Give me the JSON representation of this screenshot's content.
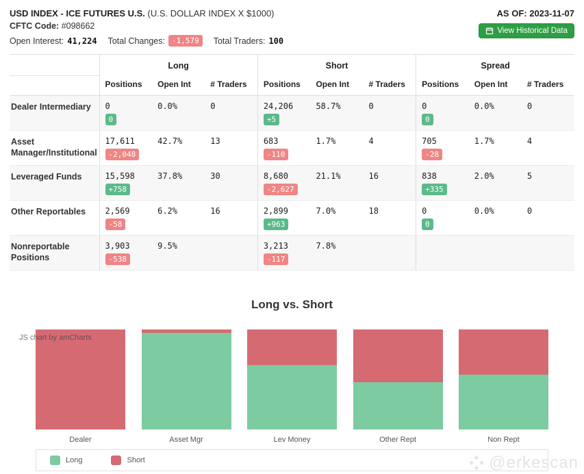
{
  "header": {
    "title": "USD INDEX - ICE FUTURES U.S.",
    "subtitle": "(U.S. DOLLAR INDEX X $1000)",
    "cftc_code_label": "CFTC Code:",
    "cftc_code": "#098662",
    "open_interest_label": "Open Interest:",
    "open_interest": "41,224",
    "total_changes_label": "Total Changes:",
    "total_changes": "-1,579",
    "total_traders_label": "Total Traders:",
    "total_traders": "100",
    "as_of": "AS OF: 2023-11-07",
    "historical_button_label": "View Historical Data"
  },
  "table": {
    "groups": [
      "Long",
      "Short",
      "Spread"
    ],
    "columns": [
      "Positions",
      "Open Int",
      "# Traders"
    ],
    "rows": [
      {
        "label": "Dealer Intermediary",
        "long": {
          "positions": "0",
          "change": "0",
          "open_int": "0.0%",
          "traders": "0"
        },
        "short": {
          "positions": "24,206",
          "change": "+5",
          "open_int": "58.7%",
          "traders": "0"
        },
        "spread": {
          "positions": "0",
          "change": "0",
          "open_int": "0.0%",
          "traders": "0"
        }
      },
      {
        "label": "Asset Manager/Institutional",
        "long": {
          "positions": "17,611",
          "change": "-2,048",
          "open_int": "42.7%",
          "traders": "13"
        },
        "short": {
          "positions": "683",
          "change": "-110",
          "open_int": "1.7%",
          "traders": "4"
        },
        "spread": {
          "positions": "705",
          "change": "-28",
          "open_int": "1.7%",
          "traders": "4"
        }
      },
      {
        "label": "Leveraged Funds",
        "long": {
          "positions": "15,598",
          "change": "+758",
          "open_int": "37.8%",
          "traders": "30"
        },
        "short": {
          "positions": "8,680",
          "change": "-2,627",
          "open_int": "21.1%",
          "traders": "16"
        },
        "spread": {
          "positions": "838",
          "change": "+335",
          "open_int": "2.0%",
          "traders": "5"
        }
      },
      {
        "label": "Other Reportables",
        "long": {
          "positions": "2,569",
          "change": "-58",
          "open_int": "6.2%",
          "traders": "16"
        },
        "short": {
          "positions": "2,899",
          "change": "+963",
          "open_int": "7.0%",
          "traders": "18"
        },
        "spread": {
          "positions": "0",
          "change": "0",
          "open_int": "0.0%",
          "traders": "0"
        }
      },
      {
        "label": "Nonreportable Positions",
        "long": {
          "positions": "3,903",
          "change": "-538",
          "open_int": "9.5%",
          "traders": ""
        },
        "short": {
          "positions": "3,213",
          "change": "-117",
          "open_int": "7.8%",
          "traders": ""
        },
        "spread": null
      }
    ]
  },
  "chart_data": {
    "type": "bar",
    "stacked": true,
    "percent_stacked": true,
    "title": "Long vs. Short",
    "categories": [
      "Dealer",
      "Asset Mgr",
      "Lev Money",
      "Other Rept",
      "Non Rept"
    ],
    "series": [
      {
        "name": "Long",
        "color": "#7dcba1",
        "values": [
          0,
          17611,
          15598,
          2569,
          3903
        ]
      },
      {
        "name": "Short",
        "color": "#d66a73",
        "values": [
          24206,
          683,
          8680,
          2899,
          3213
        ]
      }
    ],
    "legend_position": "bottom",
    "grid": false,
    "watermark": "JS chart by amCharts"
  },
  "watermark": {
    "handle": "@erkescan"
  },
  "colors": {
    "badge_positive": "#5cba8a",
    "badge_negative": "#ef8585",
    "button_green": "#2e9e44",
    "bar_long_green": "#7dcba1",
    "bar_short_red": "#d66a73"
  }
}
